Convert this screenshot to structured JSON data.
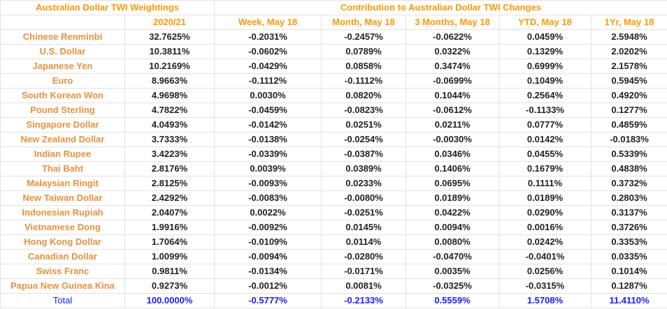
{
  "header": {
    "group_weightings": "Australian Dollar TWI Weightings",
    "group_contribution": "Contribution to Australian Dollar TWI Changes",
    "columns": [
      "2020/21",
      "Week, May 18",
      "Month, May 18",
      "3 Months, May 18",
      "YTD, May 18",
      "1Yr, May 18"
    ]
  },
  "rows": [
    {
      "currency": "Chinese Renminbi",
      "values": [
        "32.7625%",
        "-0.2031%",
        "-0.2457%",
        "-0.0622%",
        "0.0459%",
        "2.5948%"
      ]
    },
    {
      "currency": "U.S. Dollar",
      "values": [
        "10.3811%",
        "-0.0602%",
        "0.0789%",
        "0.0322%",
        "0.1329%",
        "2.0202%"
      ]
    },
    {
      "currency": "Japanese Yen",
      "values": [
        "10.2169%",
        "-0.0429%",
        "0.0858%",
        "0.3474%",
        "0.6999%",
        "2.1578%"
      ]
    },
    {
      "currency": "Euro",
      "values": [
        "8.9663%",
        "-0.1112%",
        "-0.1112%",
        "-0.0699%",
        "0.1049%",
        "0.5945%"
      ]
    },
    {
      "currency": "South Korean Won",
      "values": [
        "4.9698%",
        "0.0030%",
        "0.0820%",
        "0.1044%",
        "0.2564%",
        "0.4920%"
      ]
    },
    {
      "currency": "Pound Sterling",
      "values": [
        "4.7822%",
        "-0.0459%",
        "-0.0823%",
        "-0.0612%",
        "-0.1133%",
        "0.1277%"
      ]
    },
    {
      "currency": "Singapore Dollar",
      "values": [
        "4.0493%",
        "-0.0142%",
        "0.0251%",
        "0.0211%",
        "0.0777%",
        "0.4859%"
      ]
    },
    {
      "currency": "New Zealand Dollar",
      "values": [
        "3.7333%",
        "-0.0138%",
        "-0.0254%",
        "-0.0030%",
        "0.0142%",
        "-0.0183%"
      ]
    },
    {
      "currency": "Indian Rupee",
      "values": [
        "3.4223%",
        "-0.0339%",
        "-0.0387%",
        "0.0346%",
        "0.0455%",
        "0.5339%"
      ]
    },
    {
      "currency": "Thai Baht",
      "values": [
        "2.8176%",
        "0.0039%",
        "0.0389%",
        "0.1406%",
        "0.1679%",
        "0.4838%"
      ]
    },
    {
      "currency": "Malaysian Ringit",
      "values": [
        "2.8125%",
        "-0.0093%",
        "0.0233%",
        "0.0695%",
        "0.1111%",
        "0.3732%"
      ]
    },
    {
      "currency": "New Taiwan Dollar",
      "values": [
        "2.4292%",
        "-0.0083%",
        "-0.0080%",
        "0.0189%",
        "0.0189%",
        "0.2803%"
      ]
    },
    {
      "currency": "Indonesian Rupiah",
      "values": [
        "2.0407%",
        "0.0022%",
        "-0.0251%",
        "0.0422%",
        "0.0290%",
        "0.3137%"
      ]
    },
    {
      "currency": "Vietnamese Dong",
      "values": [
        "1.9916%",
        "-0.0092%",
        "0.0145%",
        "0.0094%",
        "0.0016%",
        "0.3726%"
      ]
    },
    {
      "currency": "Hong Kong Dollar",
      "values": [
        "1.7064%",
        "-0.0109%",
        "0.0114%",
        "0.0080%",
        "0.0242%",
        "0.3353%"
      ]
    },
    {
      "currency": "Canadian Dollar",
      "values": [
        "1.0099%",
        "-0.0094%",
        "-0.0280%",
        "-0.0470%",
        "-0.0401%",
        "0.0335%"
      ]
    },
    {
      "currency": "Swiss Franc",
      "values": [
        "0.9811%",
        "-0.0134%",
        "-0.0171%",
        "0.0035%",
        "0.0256%",
        "0.1014%"
      ]
    },
    {
      "currency": "Papua New Guinea Kina",
      "values": [
        "0.9273%",
        "-0.0012%",
        "0.0081%",
        "-0.0325%",
        "-0.0315%",
        "0.1287%"
      ]
    }
  ],
  "total": {
    "label": "Total",
    "values": [
      "100.0000%",
      "-0.5777%",
      "-0.2133%",
      "0.5559%",
      "1.5708%",
      "11.4110%"
    ]
  },
  "colors": {
    "header": "#ff9900",
    "currency": "#e8913a",
    "total": "#1a1aff"
  }
}
